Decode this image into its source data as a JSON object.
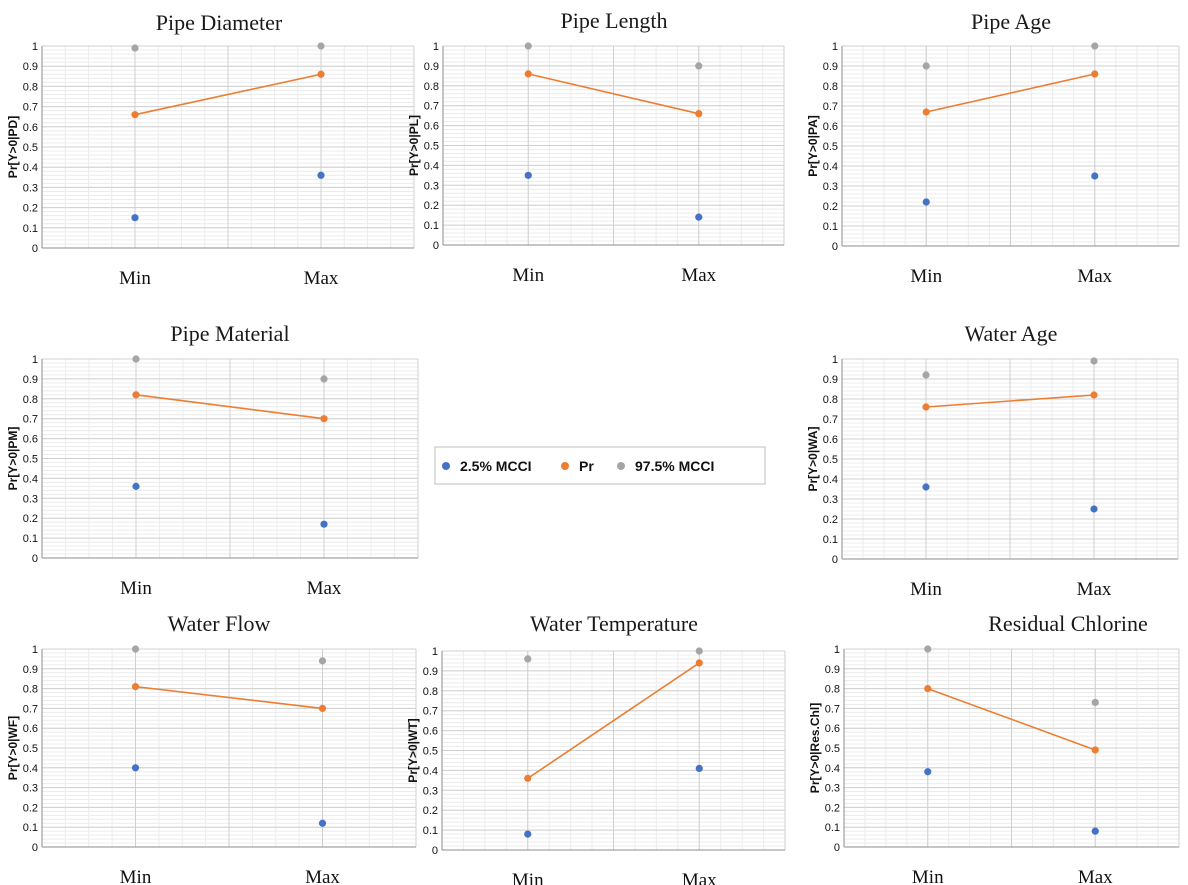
{
  "legend": {
    "entries": [
      {
        "label": "2.5% MCCI",
        "color": "#4472C4"
      },
      {
        "label": "Pr",
        "color": "#ED7D31"
      },
      {
        "label": "97.5% MCCI",
        "color": "#A5A5A5"
      }
    ]
  },
  "chart_data": [
    {
      "type": "line",
      "title": "Pipe Diameter",
      "ylabel": "Pr[Y>0|PD]",
      "categories": [
        "Min",
        "Max"
      ],
      "ylim": [
        0,
        1
      ],
      "yticks": [
        "0",
        "0.1",
        "0.2",
        "0.3",
        "0.4",
        "0.5",
        "0.6",
        "0.7",
        "0.8",
        "0.9",
        "1"
      ],
      "series": [
        {
          "name": "2.5% MCCI",
          "values": [
            0.15,
            0.36
          ]
        },
        {
          "name": "Pr",
          "values": [
            0.66,
            0.86
          ]
        },
        {
          "name": "97.5% MCCI",
          "values": [
            0.99,
            1.0
          ]
        }
      ]
    },
    {
      "type": "line",
      "title": "Pipe Length",
      "ylabel": "Pr[Y>0|PL]",
      "categories": [
        "Min",
        "Max"
      ],
      "ylim": [
        0,
        1
      ],
      "yticks": [
        "0",
        "0.1",
        "0.2",
        "0.3",
        "0.4",
        "0.5",
        "0.6",
        "0.7",
        "0.8",
        "0.9",
        "1"
      ],
      "series": [
        {
          "name": "2.5% MCCI",
          "values": [
            0.35,
            0.14
          ]
        },
        {
          "name": "Pr",
          "values": [
            0.86,
            0.66
          ]
        },
        {
          "name": "97.5% MCCI",
          "values": [
            1.0,
            0.9
          ]
        }
      ]
    },
    {
      "type": "line",
      "title": "Pipe Age",
      "ylabel": "Pr[Y>0|PA]",
      "categories": [
        "Min",
        "Max"
      ],
      "ylim": [
        0,
        1
      ],
      "yticks": [
        "0",
        "0.1",
        "0.2",
        "0.3",
        "0.4",
        "0.5",
        "0.6",
        "0.7",
        "0.8",
        "0.9",
        "1"
      ],
      "series": [
        {
          "name": "2.5% MCCI",
          "values": [
            0.22,
            0.35
          ]
        },
        {
          "name": "Pr",
          "values": [
            0.67,
            0.86
          ]
        },
        {
          "name": "97.5% MCCI",
          "values": [
            0.9,
            1.0
          ]
        }
      ]
    },
    {
      "type": "line",
      "title": "Pipe Material",
      "ylabel": "Pr[Y>0|PM]",
      "categories": [
        "Min",
        "Max"
      ],
      "ylim": [
        0,
        1
      ],
      "yticks": [
        "0",
        "0.1",
        "0.2",
        "0.3",
        "0.4",
        "0.5",
        "0.6",
        "0.7",
        "0.8",
        "0.9",
        "1"
      ],
      "series": [
        {
          "name": "2.5% MCCI",
          "values": [
            0.36,
            0.17
          ]
        },
        {
          "name": "Pr",
          "values": [
            0.82,
            0.7
          ]
        },
        {
          "name": "97.5% MCCI",
          "values": [
            1.0,
            0.9
          ]
        }
      ]
    },
    {
      "type": "line",
      "title": "Water Age",
      "ylabel": "Pr[Y>0|WA]",
      "categories": [
        "Min",
        "Max"
      ],
      "ylim": [
        0,
        1
      ],
      "yticks": [
        "0",
        "0.1",
        "0.2",
        "0.3",
        "0.4",
        "0.5",
        "0.6",
        "0.7",
        "0.8",
        "0.9",
        "1"
      ],
      "series": [
        {
          "name": "2.5% MCCI",
          "values": [
            0.36,
            0.25
          ]
        },
        {
          "name": "Pr",
          "values": [
            0.76,
            0.82
          ]
        },
        {
          "name": "97.5% MCCI",
          "values": [
            0.92,
            0.99
          ]
        }
      ]
    },
    {
      "type": "line",
      "title": "Water Flow",
      "ylabel": "Pr[Y>0|WF]",
      "categories": [
        "Min",
        "Max"
      ],
      "ylim": [
        0,
        1
      ],
      "yticks": [
        "0",
        "0.1",
        "0.2",
        "0.3",
        "0.4",
        "0.5",
        "0.6",
        "0.7",
        "0.8",
        "0.9",
        "1"
      ],
      "series": [
        {
          "name": "2.5% MCCI",
          "values": [
            0.4,
            0.12
          ]
        },
        {
          "name": "Pr",
          "values": [
            0.81,
            0.7
          ]
        },
        {
          "name": "97.5% MCCI",
          "values": [
            1.0,
            0.94
          ]
        }
      ]
    },
    {
      "type": "line",
      "title": "Water Temperature",
      "ylabel": "Pr[Y>0|WT]",
      "categories": [
        "Min",
        "Max"
      ],
      "ylim": [
        0,
        1
      ],
      "yticks": [
        "0",
        "0.1",
        "0.2",
        "0.3",
        "0.4",
        "0.5",
        "0.6",
        "0.7",
        "0.8",
        "0.9",
        "1"
      ],
      "series": [
        {
          "name": "2.5% MCCI",
          "values": [
            0.08,
            0.41
          ]
        },
        {
          "name": "Pr",
          "values": [
            0.36,
            0.94
          ]
        },
        {
          "name": "97.5% MCCI",
          "values": [
            0.96,
            1.0
          ]
        }
      ]
    },
    {
      "type": "line",
      "title": "Residual Chlorine",
      "ylabel": "Pr[Y>0|Res.Chl]",
      "categories": [
        "Min",
        "Max"
      ],
      "ylim": [
        0,
        1
      ],
      "yticks": [
        "0",
        "0.1",
        "0.2",
        "0.3",
        "0.4",
        "0.5",
        "0.6",
        "0.7",
        "0.8",
        "0.9",
        "1"
      ],
      "series": [
        {
          "name": "2.5% MCCI",
          "values": [
            0.38,
            0.08
          ]
        },
        {
          "name": "Pr",
          "values": [
            0.8,
            0.49
          ]
        },
        {
          "name": "97.5% MCCI",
          "values": [
            1.0,
            0.73
          ]
        }
      ]
    }
  ]
}
